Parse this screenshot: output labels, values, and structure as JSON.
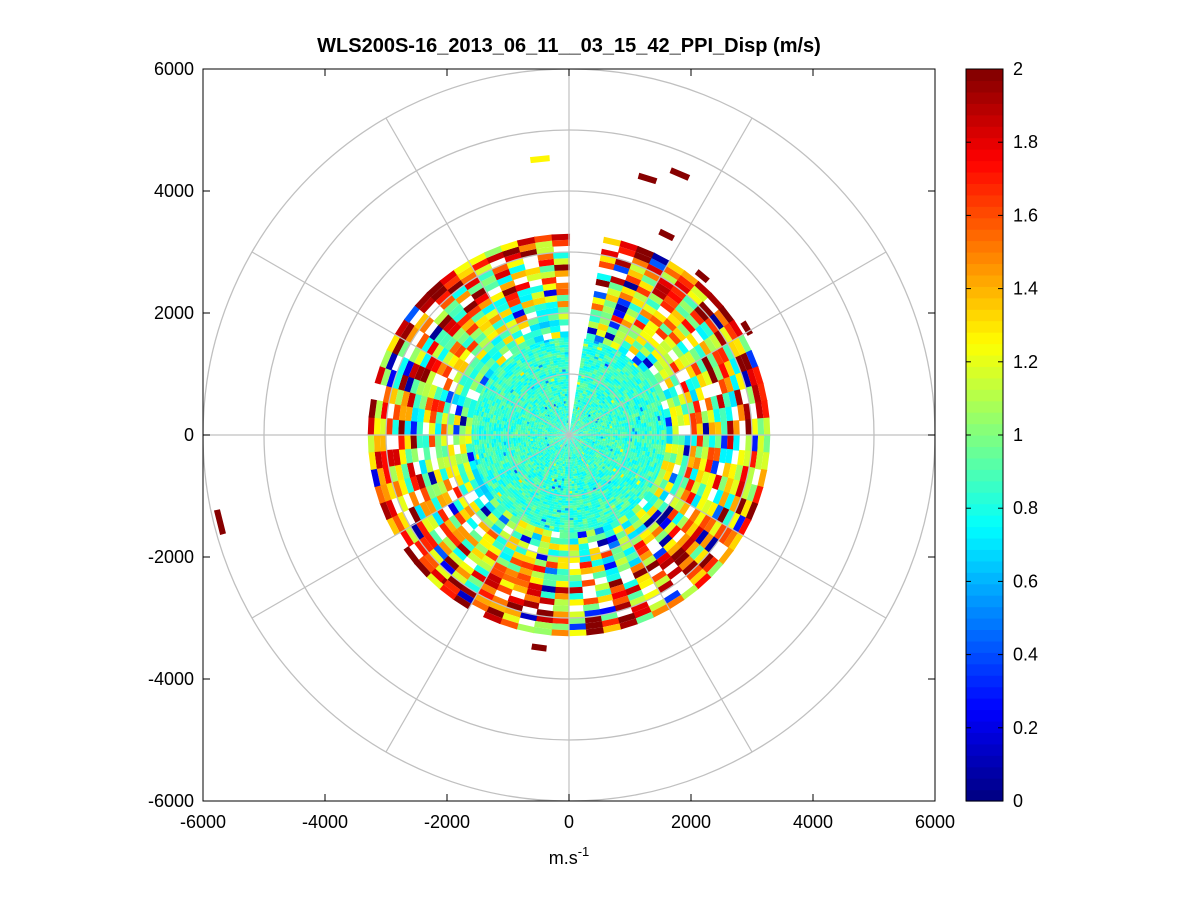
{
  "chart_data": {
    "type": "polar-heatmap",
    "title": "WLS200S-16_2013_06_11__03_15_42_PPI_Disp (m/s)",
    "xlabel": "m.s",
    "xlabel_superscript": "-1",
    "ylabel": "",
    "xlim": [
      -6000,
      6000
    ],
    "ylim": [
      -6000,
      6000
    ],
    "xticks": [
      -6000,
      -4000,
      -2000,
      0,
      2000,
      4000,
      6000
    ],
    "yticks": [
      -6000,
      -4000,
      -2000,
      0,
      2000,
      4000,
      6000
    ],
    "xtick_labels": [
      "-6000",
      "-4000",
      "-2000",
      "0",
      "2000",
      "4000",
      "6000"
    ],
    "ytick_labels": [
      "-6000",
      "-4000",
      "-2000",
      "0",
      "2000",
      "4000",
      "6000"
    ],
    "polar_grid_radii": [
      1000,
      2000,
      3000,
      4000,
      5000,
      6000
    ],
    "polar_grid_angles_deg": [
      0,
      30,
      60,
      90,
      120,
      150,
      180,
      210,
      240,
      270,
      300,
      330
    ],
    "grid": true,
    "colorbar": {
      "colormap": "jet",
      "min": 0,
      "max": 2,
      "ticks": [
        0,
        0.2,
        0.4,
        0.6,
        0.8,
        1,
        1.2,
        1.4,
        1.6,
        1.8,
        2
      ],
      "tick_labels": [
        "0",
        "0.2",
        "0.4",
        "0.6",
        "0.8",
        "1",
        "1.2",
        "1.4",
        "1.6",
        "1.8",
        "2"
      ],
      "levels": 64
    },
    "data_extent": {
      "near_range_max_m": 1600,
      "dense_range_max_m": 3300,
      "missing_sector_deg": [
        0,
        8
      ],
      "near_range_typical_value": 0.85
    },
    "range_rings": [
      {
        "r_min": 1600,
        "r_max": 2000,
        "mean": 1.0,
        "spread": 0.35,
        "coverage": 0.9
      },
      {
        "r_min": 2000,
        "r_max": 2500,
        "mean": 1.2,
        "spread": 0.55,
        "coverage": 0.9
      },
      {
        "r_min": 2500,
        "r_max": 3000,
        "mean": 1.4,
        "spread": 0.7,
        "coverage": 0.88
      },
      {
        "r_min": 3000,
        "r_max": 3300,
        "mean": 1.55,
        "spread": 0.6,
        "coverage": 0.85
      }
    ],
    "isolated_gates": [
      {
        "range_m": 4550,
        "azimuth_deg": 354,
        "value": 1.25
      },
      {
        "range_m": 4400,
        "azimuth_deg": 17,
        "value": 2.0
      },
      {
        "range_m": 4650,
        "azimuth_deg": 23,
        "value": 2.0
      },
      {
        "range_m": 3650,
        "azimuth_deg": 26,
        "value": 2.0
      },
      {
        "range_m": 3400,
        "azimuth_deg": 40,
        "value": 2.0
      },
      {
        "range_m": 3400,
        "azimuth_deg": 59,
        "value": 2.0
      },
      {
        "range_m": 5900,
        "azimuth_deg": 256,
        "value": 2.0
      },
      {
        "range_m": 3150,
        "azimuth_deg": 223,
        "value": 1.8
      },
      {
        "range_m": 3520,
        "azimuth_deg": 188,
        "value": 2.0
      }
    ]
  }
}
